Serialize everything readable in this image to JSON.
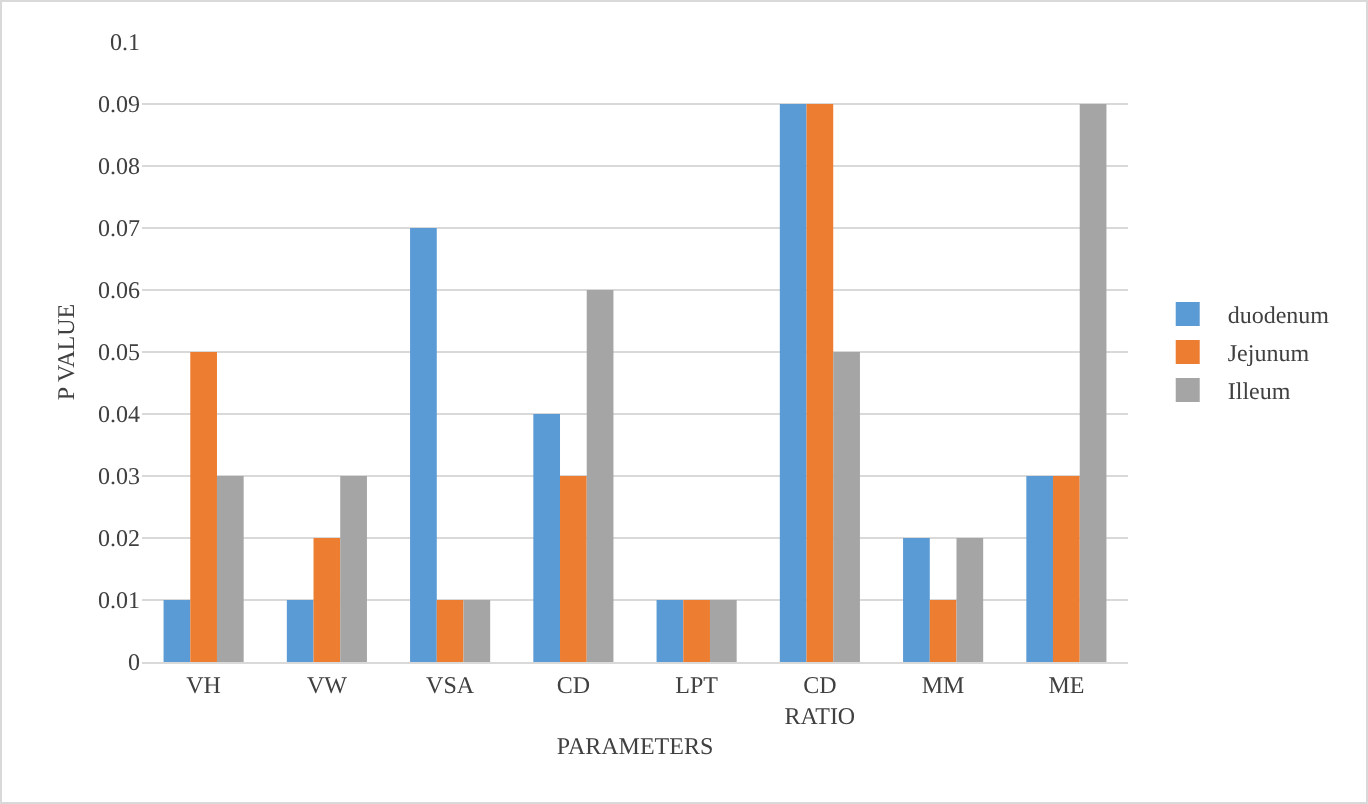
{
  "chart_data": {
    "type": "bar",
    "xlabel": "PARAMETERS",
    "ylabel": "P VALUE",
    "categories": [
      "VH",
      "VW",
      "VSA",
      "CD",
      "LPT",
      "CD RATIO",
      "MM",
      "ME"
    ],
    "series": [
      {
        "name": "duodenum",
        "color": "#5b9bd5",
        "values": [
          0.01,
          0.01,
          0.07,
          0.04,
          0.01,
          0.09,
          0.02,
          0.03
        ]
      },
      {
        "name": "Jejunum",
        "color": "#ed7d31",
        "values": [
          0.05,
          0.02,
          0.01,
          0.03,
          0.01,
          0.09,
          0.01,
          0.03
        ]
      },
      {
        "name": "Illeum",
        "color": "#a5a5a5",
        "values": [
          0.03,
          0.03,
          0.01,
          0.06,
          0.01,
          0.05,
          0.02,
          0.09
        ]
      }
    ],
    "ylim": [
      0,
      0.1
    ],
    "yticks": [
      0,
      0.01,
      0.02,
      0.03,
      0.04,
      0.05,
      0.06,
      0.07,
      0.08,
      0.09,
      0.1
    ],
    "grid": "y",
    "legend": "right"
  }
}
